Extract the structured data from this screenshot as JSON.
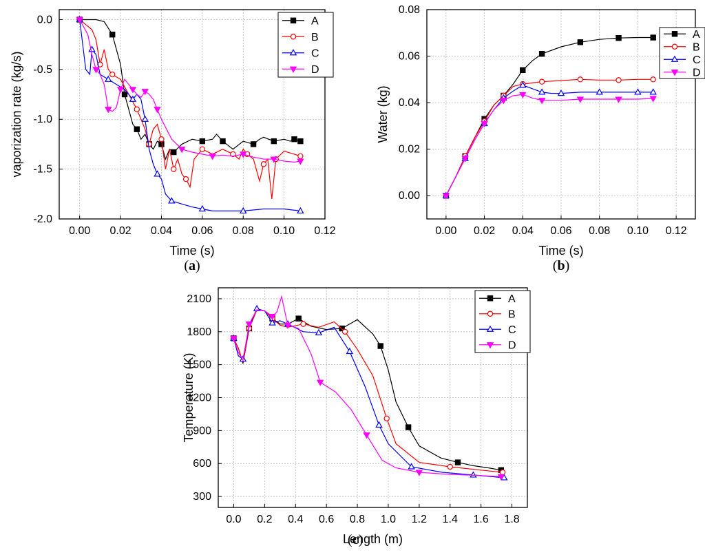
{
  "chart_data": [
    {
      "id": "a",
      "type": "line",
      "panel_label": "a",
      "xlabel": "Time (s)",
      "ylabel": "vaporization rate (kg/s)",
      "xlim": [
        -0.01,
        0.12
      ],
      "ylim": [
        -2.0,
        0.1
      ],
      "xticks": [
        "0.00",
        "0.02",
        "0.04",
        "0.06",
        "0.08",
        "0.10",
        "0.12"
      ],
      "yticks": [
        "0.0",
        "-0.5",
        "-1.0",
        "-1.5",
        "-2.0"
      ],
      "xtick_values": [
        0,
        0.02,
        0.04,
        0.06,
        0.08,
        0.1,
        0.12
      ],
      "ytick_values": [
        0,
        -0.5,
        -1.0,
        -1.5,
        -2.0
      ],
      "grid": true,
      "legend_position": "top-right",
      "series": [
        {
          "name": "A",
          "color": "#000000",
          "marker": "square",
          "filled": true,
          "x": [
            0,
            0.008,
            0.012,
            0.016,
            0.018,
            0.02,
            0.022,
            0.024,
            0.026,
            0.028,
            0.03,
            0.032,
            0.034,
            0.036,
            0.038,
            0.04,
            0.042,
            0.044,
            0.046,
            0.05,
            0.055,
            0.06,
            0.065,
            0.067,
            0.07,
            0.075,
            0.08,
            0.085,
            0.088,
            0.09,
            0.095,
            0.1,
            0.103,
            0.105,
            0.108
          ],
          "y": [
            0,
            0,
            -0.02,
            -0.15,
            -0.3,
            -0.45,
            -0.75,
            -0.9,
            -1.05,
            -1.1,
            -1.2,
            -1.15,
            -1.25,
            -1.3,
            -1.22,
            -1.25,
            -1.4,
            -1.3,
            -1.33,
            -1.25,
            -1.2,
            -1.22,
            -1.2,
            -1.15,
            -1.22,
            -1.3,
            -1.22,
            -1.25,
            -1.2,
            -1.18,
            -1.22,
            -1.2,
            -1.22,
            -1.2,
            -1.22
          ]
        },
        {
          "name": "B",
          "color": "#ff0000",
          "marker": "circle",
          "filled": false,
          "x": [
            0,
            0.006,
            0.008,
            0.01,
            0.012,
            0.014,
            0.016,
            0.02,
            0.024,
            0.028,
            0.03,
            0.032,
            0.034,
            0.036,
            0.038,
            0.04,
            0.042,
            0.044,
            0.046,
            0.048,
            0.05,
            0.052,
            0.054,
            0.056,
            0.06,
            0.065,
            0.07,
            0.075,
            0.078,
            0.08,
            0.082,
            0.085,
            0.088,
            0.09,
            0.092,
            0.094,
            0.096,
            0.1,
            0.105,
            0.108
          ],
          "y": [
            0,
            -0.1,
            -0.2,
            -0.45,
            -0.3,
            -0.5,
            -0.55,
            -0.6,
            -0.75,
            -0.9,
            -1.0,
            -1.1,
            -1.25,
            -1.1,
            -1.05,
            -1.2,
            -1.5,
            -1.3,
            -1.5,
            -1.4,
            -1.55,
            -1.6,
            -1.68,
            -1.4,
            -1.3,
            -1.35,
            -1.3,
            -1.35,
            -1.4,
            -1.3,
            -1.35,
            -1.4,
            -1.62,
            -1.45,
            -1.4,
            -1.8,
            -1.4,
            -1.32,
            -1.35,
            -1.37
          ]
        },
        {
          "name": "C",
          "color": "#0000ff",
          "marker": "triangle-up",
          "filled": false,
          "x": [
            0,
            0.003,
            0.005,
            0.006,
            0.008,
            0.01,
            0.014,
            0.018,
            0.022,
            0.026,
            0.028,
            0.03,
            0.032,
            0.034,
            0.036,
            0.038,
            0.04,
            0.042,
            0.045,
            0.05,
            0.055,
            0.06,
            0.065,
            0.07,
            0.08,
            0.09,
            0.1,
            0.108
          ],
          "y": [
            0,
            -0.5,
            -0.55,
            -0.3,
            -0.35,
            -0.55,
            -0.6,
            -0.65,
            -0.7,
            -0.8,
            -0.75,
            -0.8,
            -1.0,
            -1.3,
            -1.45,
            -1.55,
            -1.6,
            -1.75,
            -1.82,
            -1.85,
            -1.88,
            -1.9,
            -1.92,
            -1.92,
            -1.92,
            -1.9,
            -1.9,
            -1.92
          ]
        },
        {
          "name": "D",
          "color": "#ff00ff",
          "marker": "triangle-down",
          "filled": true,
          "x": [
            0,
            0.004,
            0.006,
            0.008,
            0.01,
            0.012,
            0.014,
            0.016,
            0.018,
            0.02,
            0.022,
            0.024,
            0.026,
            0.028,
            0.03,
            0.032,
            0.034,
            0.036,
            0.038,
            0.04,
            0.045,
            0.05,
            0.055,
            0.06,
            0.065,
            0.07,
            0.075,
            0.08,
            0.085,
            0.09,
            0.095,
            0.1,
            0.105,
            0.108
          ],
          "y": [
            0,
            -0.15,
            -0.35,
            -0.5,
            -0.55,
            -0.65,
            -0.9,
            -0.92,
            -0.88,
            -0.7,
            -0.6,
            -0.65,
            -0.7,
            -0.75,
            -0.78,
            -0.72,
            -0.75,
            -0.8,
            -0.9,
            -1.0,
            -1.2,
            -1.3,
            -1.33,
            -1.35,
            -1.37,
            -1.36,
            -1.37,
            -1.35,
            -1.38,
            -1.4,
            -1.4,
            -1.42,
            -1.43,
            -1.42
          ]
        }
      ]
    },
    {
      "id": "b",
      "type": "line",
      "panel_label": "b",
      "xlabel": "Time (s)",
      "ylabel": "Water (kg)",
      "xlim": [
        -0.01,
        0.13
      ],
      "ylim": [
        -0.01,
        0.08
      ],
      "xticks": [
        "0.00",
        "0.02",
        "0.04",
        "0.06",
        "0.08",
        "0.10",
        "0.12"
      ],
      "yticks": [
        "0.00",
        "0.02",
        "0.04",
        "0.06",
        "0.08"
      ],
      "xtick_values": [
        0,
        0.02,
        0.04,
        0.06,
        0.08,
        0.1,
        0.12
      ],
      "ytick_values": [
        0,
        0.02,
        0.04,
        0.06,
        0.08
      ],
      "grid": true,
      "legend_position": "top-right",
      "series": [
        {
          "name": "A",
          "color": "#000000",
          "marker": "square",
          "filled": true,
          "x": [
            0,
            0.005,
            0.01,
            0.015,
            0.02,
            0.025,
            0.03,
            0.035,
            0.04,
            0.045,
            0.05,
            0.06,
            0.07,
            0.08,
            0.09,
            0.1,
            0.108
          ],
          "y": [
            0,
            0.008,
            0.017,
            0.025,
            0.033,
            0.039,
            0.043,
            0.048,
            0.054,
            0.058,
            0.061,
            0.064,
            0.066,
            0.0672,
            0.0678,
            0.068,
            0.068
          ]
        },
        {
          "name": "B",
          "color": "#ff0000",
          "marker": "circle",
          "filled": false,
          "x": [
            0,
            0.005,
            0.01,
            0.015,
            0.02,
            0.025,
            0.03,
            0.035,
            0.04,
            0.045,
            0.05,
            0.06,
            0.07,
            0.08,
            0.09,
            0.1,
            0.108
          ],
          "y": [
            0,
            0.008,
            0.017,
            0.025,
            0.032,
            0.039,
            0.043,
            0.047,
            0.048,
            0.0485,
            0.049,
            0.0495,
            0.05,
            0.0497,
            0.0497,
            0.05,
            0.05
          ]
        },
        {
          "name": "C",
          "color": "#0000ff",
          "marker": "triangle-up",
          "filled": false,
          "x": [
            0,
            0.005,
            0.01,
            0.015,
            0.02,
            0.025,
            0.03,
            0.035,
            0.04,
            0.045,
            0.05,
            0.055,
            0.06,
            0.07,
            0.08,
            0.09,
            0.1,
            0.108
          ],
          "y": [
            0,
            0.008,
            0.016,
            0.024,
            0.031,
            0.037,
            0.042,
            0.045,
            0.0475,
            0.046,
            0.0445,
            0.044,
            0.044,
            0.0445,
            0.0445,
            0.0445,
            0.0445,
            0.0445
          ]
        },
        {
          "name": "D",
          "color": "#ff00ff",
          "marker": "triangle-down",
          "filled": true,
          "x": [
            0,
            0.005,
            0.01,
            0.015,
            0.02,
            0.025,
            0.03,
            0.035,
            0.04,
            0.045,
            0.05,
            0.06,
            0.07,
            0.08,
            0.09,
            0.1,
            0.108
          ],
          "y": [
            0,
            0.008,
            0.016,
            0.024,
            0.031,
            0.037,
            0.041,
            0.043,
            0.0435,
            0.042,
            0.041,
            0.041,
            0.0415,
            0.0415,
            0.0415,
            0.0415,
            0.0418
          ]
        }
      ]
    },
    {
      "id": "c",
      "type": "line",
      "panel_label": "c",
      "xlabel": "Length (m)",
      "ylabel": "Temperature (K)",
      "xlim": [
        -0.1,
        1.9
      ],
      "ylim": [
        200,
        2200
      ],
      "xticks": [
        "0.0",
        "0.2",
        "0.4",
        "0.6",
        "0.8",
        "1.0",
        "1.2",
        "1.4",
        "1.6",
        "1.8"
      ],
      "yticks": [
        "300",
        "600",
        "900",
        "1200",
        "1500",
        "1800",
        "2100"
      ],
      "xtick_values": [
        0,
        0.2,
        0.4,
        0.6,
        0.8,
        1.0,
        1.2,
        1.4,
        1.6,
        1.8
      ],
      "ytick_values": [
        300,
        600,
        900,
        1200,
        1500,
        1800,
        2100
      ],
      "grid": true,
      "legend_position": "top-right",
      "series": [
        {
          "name": "A",
          "color": "#000000",
          "marker": "square",
          "filled": true,
          "x": [
            0,
            0.03,
            0.06,
            0.1,
            0.15,
            0.2,
            0.25,
            0.3,
            0.35,
            0.42,
            0.5,
            0.6,
            0.7,
            0.8,
            0.9,
            0.95,
            1.0,
            1.05,
            1.13,
            1.2,
            1.34,
            1.45,
            1.55,
            1.65,
            1.73
          ],
          "y": [
            1740,
            1650,
            1510,
            1830,
            2000,
            1990,
            1920,
            1870,
            1870,
            1920,
            1850,
            1820,
            1830,
            1910,
            1780,
            1670,
            1450,
            1160,
            930,
            760,
            650,
            610,
            580,
            560,
            540
          ]
        },
        {
          "name": "B",
          "color": "#ff0000",
          "marker": "circle",
          "filled": false,
          "x": [
            0,
            0.03,
            0.06,
            0.1,
            0.15,
            0.2,
            0.25,
            0.3,
            0.35,
            0.45,
            0.55,
            0.65,
            0.72,
            0.8,
            0.9,
            0.99,
            1.05,
            1.2,
            1.4,
            1.6,
            1.74
          ],
          "y": [
            1740,
            1650,
            1520,
            1830,
            2000,
            1990,
            1920,
            1860,
            1840,
            1870,
            1840,
            1890,
            1800,
            1640,
            1400,
            1010,
            780,
            610,
            570,
            540,
            520
          ]
        },
        {
          "name": "C",
          "color": "#0000ff",
          "marker": "triangle-up",
          "filled": false,
          "x": [
            0,
            0.03,
            0.06,
            0.1,
            0.15,
            0.2,
            0.25,
            0.3,
            0.35,
            0.45,
            0.55,
            0.65,
            0.75,
            0.85,
            0.94,
            1.0,
            1.15,
            1.35,
            1.55,
            1.75
          ],
          "y": [
            1740,
            1580,
            1550,
            1850,
            2010,
            1990,
            1880,
            1900,
            1870,
            1800,
            1790,
            1840,
            1620,
            1300,
            950,
            780,
            570,
            520,
            495,
            470
          ]
        },
        {
          "name": "D",
          "color": "#ff00ff",
          "marker": "triangle-down",
          "filled": true,
          "x": [
            0,
            0.03,
            0.06,
            0.1,
            0.15,
            0.2,
            0.25,
            0.28,
            0.31,
            0.35,
            0.42,
            0.5,
            0.56,
            0.66,
            0.76,
            0.86,
            0.96,
            1.05,
            1.2,
            1.4,
            1.6,
            1.73
          ],
          "y": [
            1740,
            1610,
            1540,
            1870,
            2000,
            1990,
            1940,
            1980,
            2120,
            1860,
            1830,
            1600,
            1340,
            1250,
            1090,
            860,
            630,
            560,
            520,
            500,
            490,
            480
          ]
        }
      ]
    }
  ]
}
